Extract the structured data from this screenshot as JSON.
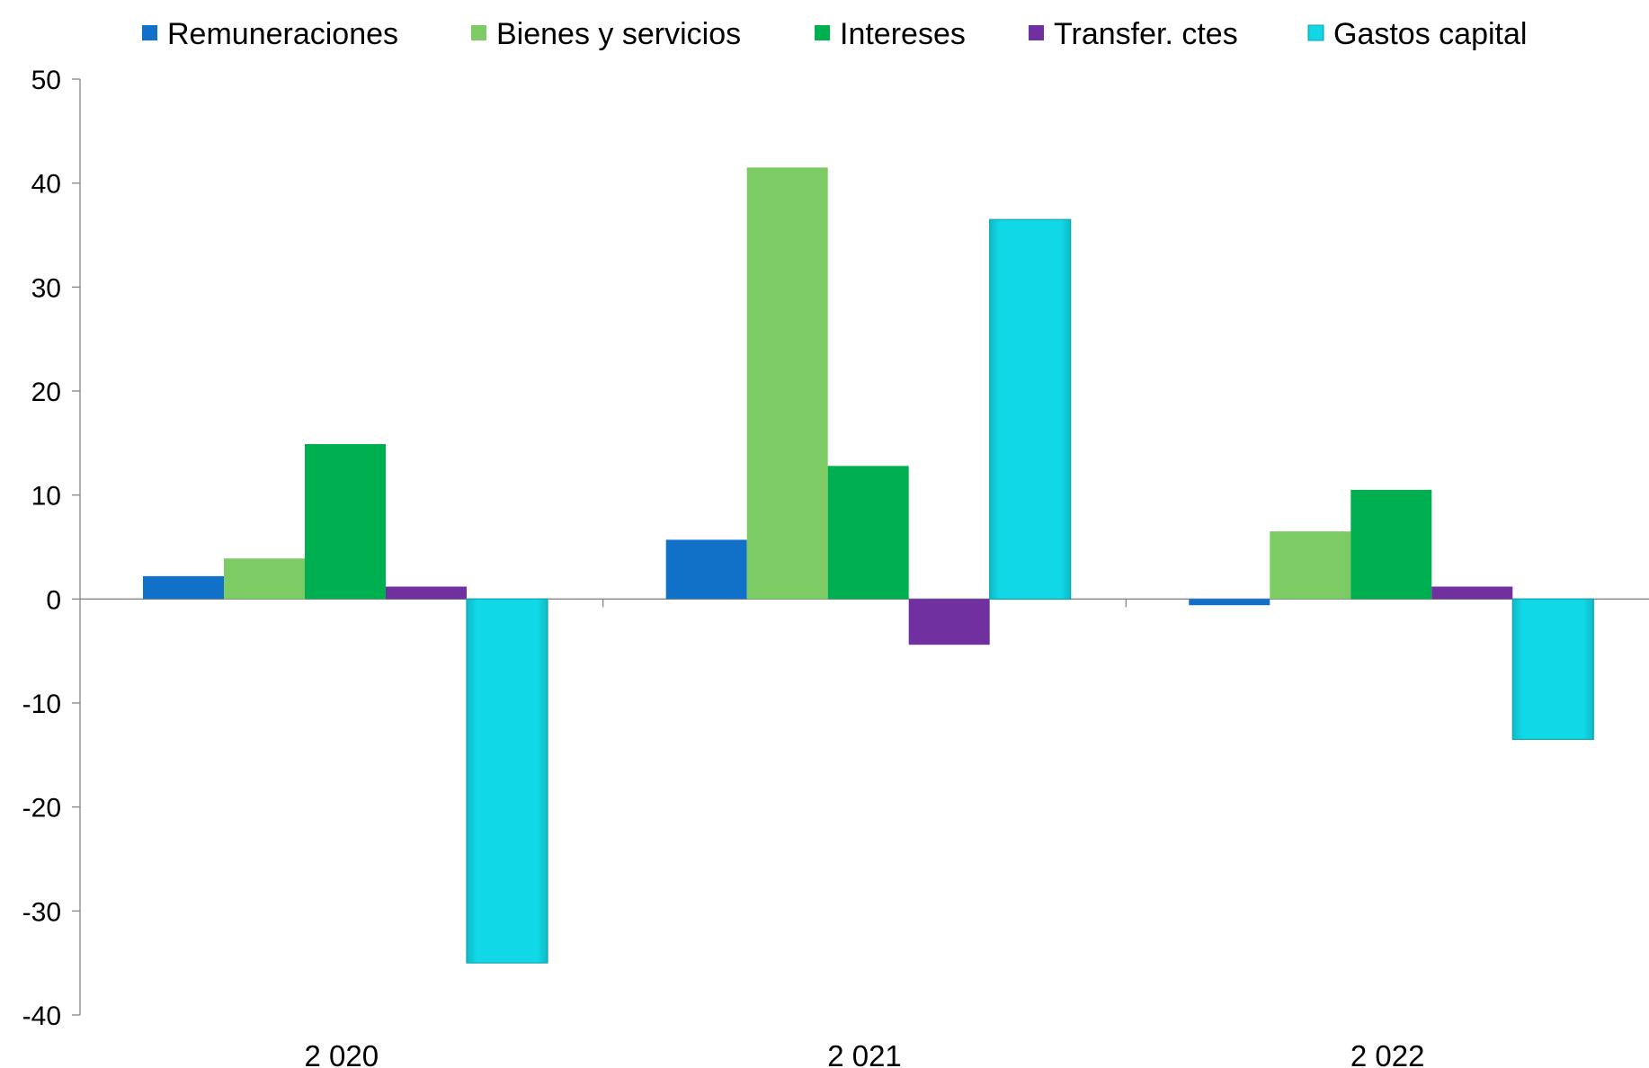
{
  "chart_data": {
    "type": "bar",
    "categories": [
      "2 020",
      "2 021",
      "2 022"
    ],
    "series": [
      {
        "name": "Remuneraciones",
        "color": "#1170C8",
        "values": [
          2.2,
          5.7,
          -0.6
        ]
      },
      {
        "name": "Bienes y servicios",
        "color": "#7DCB64",
        "values": [
          3.9,
          41.5,
          6.5
        ]
      },
      {
        "name": "Intereses",
        "color": "#00B050",
        "values": [
          14.9,
          12.8,
          10.5
        ]
      },
      {
        "name": "Transfer. ctes",
        "color": "#7030A0",
        "values": [
          1.2,
          -4.4,
          1.2
        ]
      },
      {
        "name": "Gastos capital",
        "color": "#11D8E6",
        "values": [
          -35.0,
          36.5,
          -13.5
        ]
      }
    ],
    "ylim": [
      -40,
      50
    ],
    "yticks": [
      50,
      40,
      30,
      20,
      10,
      0,
      -10,
      -20,
      -30,
      -40
    ],
    "ytick_labels": [
      "50",
      "40",
      "30",
      "20",
      "10",
      "0",
      "-10",
      "-20",
      "-30",
      "-40"
    ],
    "title": "",
    "xlabel": "",
    "ylabel": "",
    "grid": false,
    "legend_position": "top"
  }
}
